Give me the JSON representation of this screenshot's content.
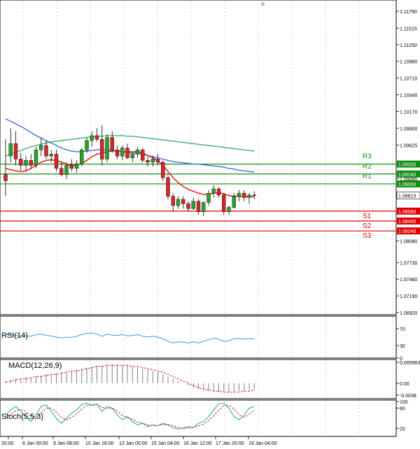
{
  "colors": {
    "bull": "#2ca02c",
    "bear": "#d62728",
    "ma_fast": "#e8251f",
    "ma_mid": "#3f6fd8",
    "ma_slow": "#3cb36a",
    "support": "#e00000",
    "resistance": "#109010",
    "rsi": "#3a9ad9",
    "grid": "#bfbfbf"
  },
  "price_axis": {
    "ticks": [
      "1.11790",
      "1.11515",
      "1.11250",
      "1.10980",
      "1.10710",
      "1.10440",
      "1.10170",
      "1.09900",
      "1.09625",
      "1.09085",
      "1.08813",
      "1.08080",
      "1.07730",
      "1.07460",
      "1.07190",
      "1.06920"
    ],
    "current_price": "1.08813"
  },
  "pivots": {
    "resistance": [
      {
        "label": "R3",
        "price": "1.09320"
      },
      {
        "label": "R2",
        "price": "1.09160"
      },
      {
        "label": "R1",
        "price": "1.09000"
      }
    ],
    "support": [
      {
        "label": "S1",
        "price": "1.08560"
      },
      {
        "label": "S2",
        "price": "1.08400"
      },
      {
        "label": "S3",
        "price": "1.08240"
      }
    ]
  },
  "time_axis": [
    "20:00",
    "8 Jan 00:00",
    "9 Jan 08:00",
    "10 Jan 16:00",
    "12 Jan 00:00",
    "15 Jan 04:00",
    "16 Jan 12:00",
    "17 Jan 20:00",
    "19 Jan 04:00"
  ],
  "indicators": {
    "rsi": {
      "label": "RSI(14)",
      "levels": [
        "70",
        "30",
        "0"
      ]
    },
    "macd": {
      "label": "MACD(12,26,9)",
      "levels": [
        "0.005963",
        "0.00",
        "-0.0038"
      ]
    },
    "stoch": {
      "label": "Stoch(5,5,3)",
      "levels": [
        "100",
        "80",
        "20"
      ]
    }
  },
  "chart_data": {
    "type": "candlestick",
    "y_range": [
      1.0692,
      1.1179
    ],
    "candles": [
      {
        "o": 1.0915,
        "h": 1.0972,
        "l": 1.088,
        "c": 1.0905
      },
      {
        "o": 1.0945,
        "h": 1.099,
        "l": 1.0935,
        "c": 1.0965
      },
      {
        "o": 1.0965,
        "h": 1.0985,
        "l": 1.093,
        "c": 1.094
      },
      {
        "o": 1.094,
        "h": 1.095,
        "l": 1.0922,
        "c": 1.093
      },
      {
        "o": 1.093,
        "h": 1.0945,
        "l": 1.092,
        "c": 1.0938
      },
      {
        "o": 1.0938,
        "h": 1.0948,
        "l": 1.0925,
        "c": 1.093
      },
      {
        "o": 1.093,
        "h": 1.096,
        "l": 1.0925,
        "c": 1.0955
      },
      {
        "o": 1.0955,
        "h": 1.0975,
        "l": 1.0945,
        "c": 1.0962
      },
      {
        "o": 1.0962,
        "h": 1.097,
        "l": 1.094,
        "c": 1.0945
      },
      {
        "o": 1.0945,
        "h": 1.0955,
        "l": 1.0935,
        "c": 1.0948
      },
      {
        "o": 1.0948,
        "h": 1.0955,
        "l": 1.092,
        "c": 1.0925
      },
      {
        "o": 1.0925,
        "h": 1.0935,
        "l": 1.0912,
        "c": 1.0915
      },
      {
        "o": 1.0915,
        "h": 1.0935,
        "l": 1.0908,
        "c": 1.093
      },
      {
        "o": 1.093,
        "h": 1.094,
        "l": 1.092,
        "c": 1.0925
      },
      {
        "o": 1.0925,
        "h": 1.0938,
        "l": 1.0918,
        "c": 1.0932
      },
      {
        "o": 1.0932,
        "h": 1.0958,
        "l": 1.0928,
        "c": 1.0955
      },
      {
        "o": 1.0955,
        "h": 1.0975,
        "l": 1.095,
        "c": 1.097
      },
      {
        "o": 1.097,
        "h": 1.0985,
        "l": 1.096,
        "c": 1.0978
      },
      {
        "o": 1.0978,
        "h": 1.099,
        "l": 1.0968,
        "c": 1.0972
      },
      {
        "o": 1.0972,
        "h": 1.0995,
        "l": 1.093,
        "c": 1.094
      },
      {
        "o": 1.094,
        "h": 1.098,
        "l": 1.0935,
        "c": 1.0975
      },
      {
        "o": 1.0975,
        "h": 1.0985,
        "l": 1.095,
        "c": 1.0955
      },
      {
        "o": 1.0955,
        "h": 1.0962,
        "l": 1.094,
        "c": 1.0945
      },
      {
        "o": 1.0945,
        "h": 1.0962,
        "l": 1.0938,
        "c": 1.0958
      },
      {
        "o": 1.0958,
        "h": 1.0965,
        "l": 1.094,
        "c": 1.0942
      },
      {
        "o": 1.0942,
        "h": 1.095,
        "l": 1.0935,
        "c": 1.0948
      },
      {
        "o": 1.0948,
        "h": 1.096,
        "l": 1.0942,
        "c": 1.0955
      },
      {
        "o": 1.0955,
        "h": 1.0958,
        "l": 1.0935,
        "c": 1.0938
      },
      {
        "o": 1.0938,
        "h": 1.0945,
        "l": 1.0928,
        "c": 1.0935
      },
      {
        "o": 1.0935,
        "h": 1.0945,
        "l": 1.0928,
        "c": 1.094
      },
      {
        "o": 1.094,
        "h": 1.0948,
        "l": 1.093,
        "c": 1.0935
      },
      {
        "o": 1.0935,
        "h": 1.0938,
        "l": 1.0905,
        "c": 1.091
      },
      {
        "o": 1.091,
        "h": 1.0915,
        "l": 1.0875,
        "c": 1.088
      },
      {
        "o": 1.088,
        "h": 1.0885,
        "l": 1.0855,
        "c": 1.0865
      },
      {
        "o": 1.0865,
        "h": 1.088,
        "l": 1.086,
        "c": 1.0875
      },
      {
        "o": 1.0875,
        "h": 1.088,
        "l": 1.086,
        "c": 1.0868
      },
      {
        "o": 1.0868,
        "h": 1.0872,
        "l": 1.0855,
        "c": 1.086
      },
      {
        "o": 1.086,
        "h": 1.0878,
        "l": 1.0858,
        "c": 1.0872
      },
      {
        "o": 1.0872,
        "h": 1.0875,
        "l": 1.085,
        "c": 1.0855
      },
      {
        "o": 1.0855,
        "h": 1.0872,
        "l": 1.0848,
        "c": 1.087
      },
      {
        "o": 1.087,
        "h": 1.089,
        "l": 1.0865,
        "c": 1.0885
      },
      {
        "o": 1.0885,
        "h": 1.0898,
        "l": 1.0878,
        "c": 1.0892
      },
      {
        "o": 1.0892,
        "h": 1.0895,
        "l": 1.0878,
        "c": 1.0882
      },
      {
        "o": 1.0882,
        "h": 1.0885,
        "l": 1.085,
        "c": 1.0855
      },
      {
        "o": 1.0855,
        "h": 1.0865,
        "l": 1.085,
        "c": 1.0862
      },
      {
        "o": 1.0862,
        "h": 1.0885,
        "l": 1.086,
        "c": 1.088
      },
      {
        "o": 1.088,
        "h": 1.089,
        "l": 1.0872,
        "c": 1.0885
      },
      {
        "o": 1.0885,
        "h": 1.089,
        "l": 1.0872,
        "c": 1.0878
      },
      {
        "o": 1.0878,
        "h": 1.0885,
        "l": 1.0868,
        "c": 1.0882
      },
      {
        "o": 1.0882,
        "h": 1.0888,
        "l": 1.0876,
        "c": 1.08813
      }
    ],
    "ma_fast": [
      1.0925,
      1.0923,
      1.0921,
      1.092,
      1.0921,
      1.0925,
      1.093,
      1.0935,
      1.0938,
      1.0939,
      1.0938,
      1.0935,
      1.0932,
      1.093,
      1.093,
      1.0933,
      1.0938,
      1.0944,
      1.0948,
      1.095,
      1.0952,
      1.0953,
      1.0953,
      1.0952,
      1.0952,
      1.0952,
      1.0952,
      1.095,
      1.0946,
      1.0942,
      1.0937,
      1.093,
      1.092,
      1.091,
      1.0902,
      1.0896,
      1.0891,
      1.0888,
      1.0885,
      1.0883,
      1.0883,
      1.0885,
      1.0886,
      1.0884,
      1.0881,
      1.088,
      1.088,
      1.0879,
      1.0879,
      1.0879
    ],
    "ma_mid": [
      1.1005,
      1.1001,
      1.0997,
      1.0993,
      1.0988,
      1.0983,
      1.0978,
      1.0974,
      1.097,
      1.0966,
      1.0962,
      1.0958,
      1.0955,
      1.0953,
      1.0952,
      1.0952,
      1.0953,
      1.0954,
      1.0955,
      1.0955,
      1.0955,
      1.0954,
      1.0953,
      1.0952,
      1.0951,
      1.095,
      1.0949,
      1.0948,
      1.0946,
      1.0944,
      1.0942,
      1.094,
      1.0938,
      1.0936,
      1.0935,
      1.0934,
      1.0933,
      1.0932,
      1.0932,
      1.0931,
      1.093,
      1.0929,
      1.0928,
      1.0927,
      1.0925,
      1.0924,
      1.0922,
      1.0921,
      1.092,
      1.0919
    ],
    "ma_slow": [
      1.0945,
      1.0948,
      1.0951,
      1.0954,
      1.0957,
      1.096,
      1.0962,
      1.0964,
      1.0966,
      1.0968,
      1.0969,
      1.097,
      1.0971,
      1.0972,
      1.0973,
      1.0974,
      1.0975,
      1.0976,
      1.0977,
      1.0977,
      1.0978,
      1.0978,
      1.0978,
      1.0978,
      1.0977,
      1.0977,
      1.0976,
      1.0975,
      1.0974,
      1.0973,
      1.0972,
      1.0971,
      1.097,
      1.0969,
      1.0968,
      1.0967,
      1.0966,
      1.0965,
      1.0964,
      1.0963,
      1.0962,
      1.0961,
      1.096,
      1.0959,
      1.0958,
      1.0957,
      1.0956,
      1.0955,
      1.0954,
      1.0953
    ],
    "rsi": [
      55,
      57,
      54,
      52,
      53,
      52,
      56,
      57,
      54,
      53,
      50,
      48,
      50,
      49,
      52,
      56,
      59,
      60,
      57,
      52,
      57,
      55,
      54,
      56,
      53,
      54,
      56,
      52,
      50,
      52,
      50,
      46,
      40,
      36,
      39,
      38,
      36,
      39,
      36,
      40,
      44,
      47,
      45,
      40,
      41,
      46,
      47,
      45,
      46,
      45
    ],
    "macd": [
      0.0002,
      0.0003,
      0.0004,
      0.0004,
      0.0005,
      0.0005,
      0.0006,
      0.0007,
      0.0008,
      0.0008,
      0.0009,
      0.001,
      0.001,
      0.0011,
      0.0012,
      0.0013,
      0.0014,
      0.0015,
      0.0016,
      0.0016,
      0.0017,
      0.0017,
      0.0017,
      0.0016,
      0.0016,
      0.0015,
      0.0014,
      0.0013,
      0.0012,
      0.0011,
      0.001,
      0.0008,
      0.0006,
      0.0004,
      0.0002,
      0.0,
      -0.0002,
      -0.0004,
      -0.0005,
      -0.0006,
      -0.0007,
      -0.0007,
      -0.0008,
      -0.0008,
      -0.0008,
      -0.0008,
      -0.0007,
      -0.0007,
      -0.0006,
      -0.0006
    ],
    "macd_signal": [
      0.0001,
      0.0002,
      0.0003,
      0.0004,
      0.0004,
      0.0005,
      0.0006,
      0.0006,
      0.0007,
      0.0008,
      0.0008,
      0.0009,
      0.001,
      0.0011,
      0.0011,
      0.0012,
      0.0013,
      0.0014,
      0.0015,
      0.0015,
      0.0016,
      0.0016,
      0.0016,
      0.0016,
      0.0016,
      0.0015,
      0.0015,
      0.0014,
      0.0013,
      0.0012,
      0.0011,
      0.001,
      0.0008,
      0.0006,
      0.0004,
      0.0002,
      0.0,
      -0.0002,
      -0.0004,
      -0.0005,
      -0.0006,
      -0.0007,
      -0.0007,
      -0.0008,
      -0.0008,
      -0.0008,
      -0.0008,
      -0.0007,
      -0.0007,
      -0.0006
    ],
    "stoch_k": [
      60,
      75,
      85,
      70,
      55,
      40,
      60,
      85,
      90,
      70,
      50,
      35,
      50,
      65,
      75,
      90,
      95,
      88,
      92,
      70,
      85,
      80,
      60,
      45,
      55,
      40,
      30,
      35,
      25,
      30,
      28,
      35,
      30,
      22,
      18,
      20,
      25,
      22,
      35,
      40,
      55,
      75,
      92,
      95,
      80,
      55,
      45,
      60,
      80,
      85
    ],
    "stoch_d": [
      50,
      62,
      72,
      76,
      70,
      55,
      52,
      65,
      80,
      80,
      68,
      52,
      45,
      52,
      63,
      77,
      88,
      90,
      92,
      82,
      80,
      80,
      72,
      58,
      52,
      47,
      38,
      35,
      30,
      28,
      28,
      31,
      31,
      28,
      23,
      20,
      21,
      22,
      27,
      32,
      43,
      57,
      74,
      87,
      88,
      78,
      60,
      53,
      62,
      75
    ]
  }
}
